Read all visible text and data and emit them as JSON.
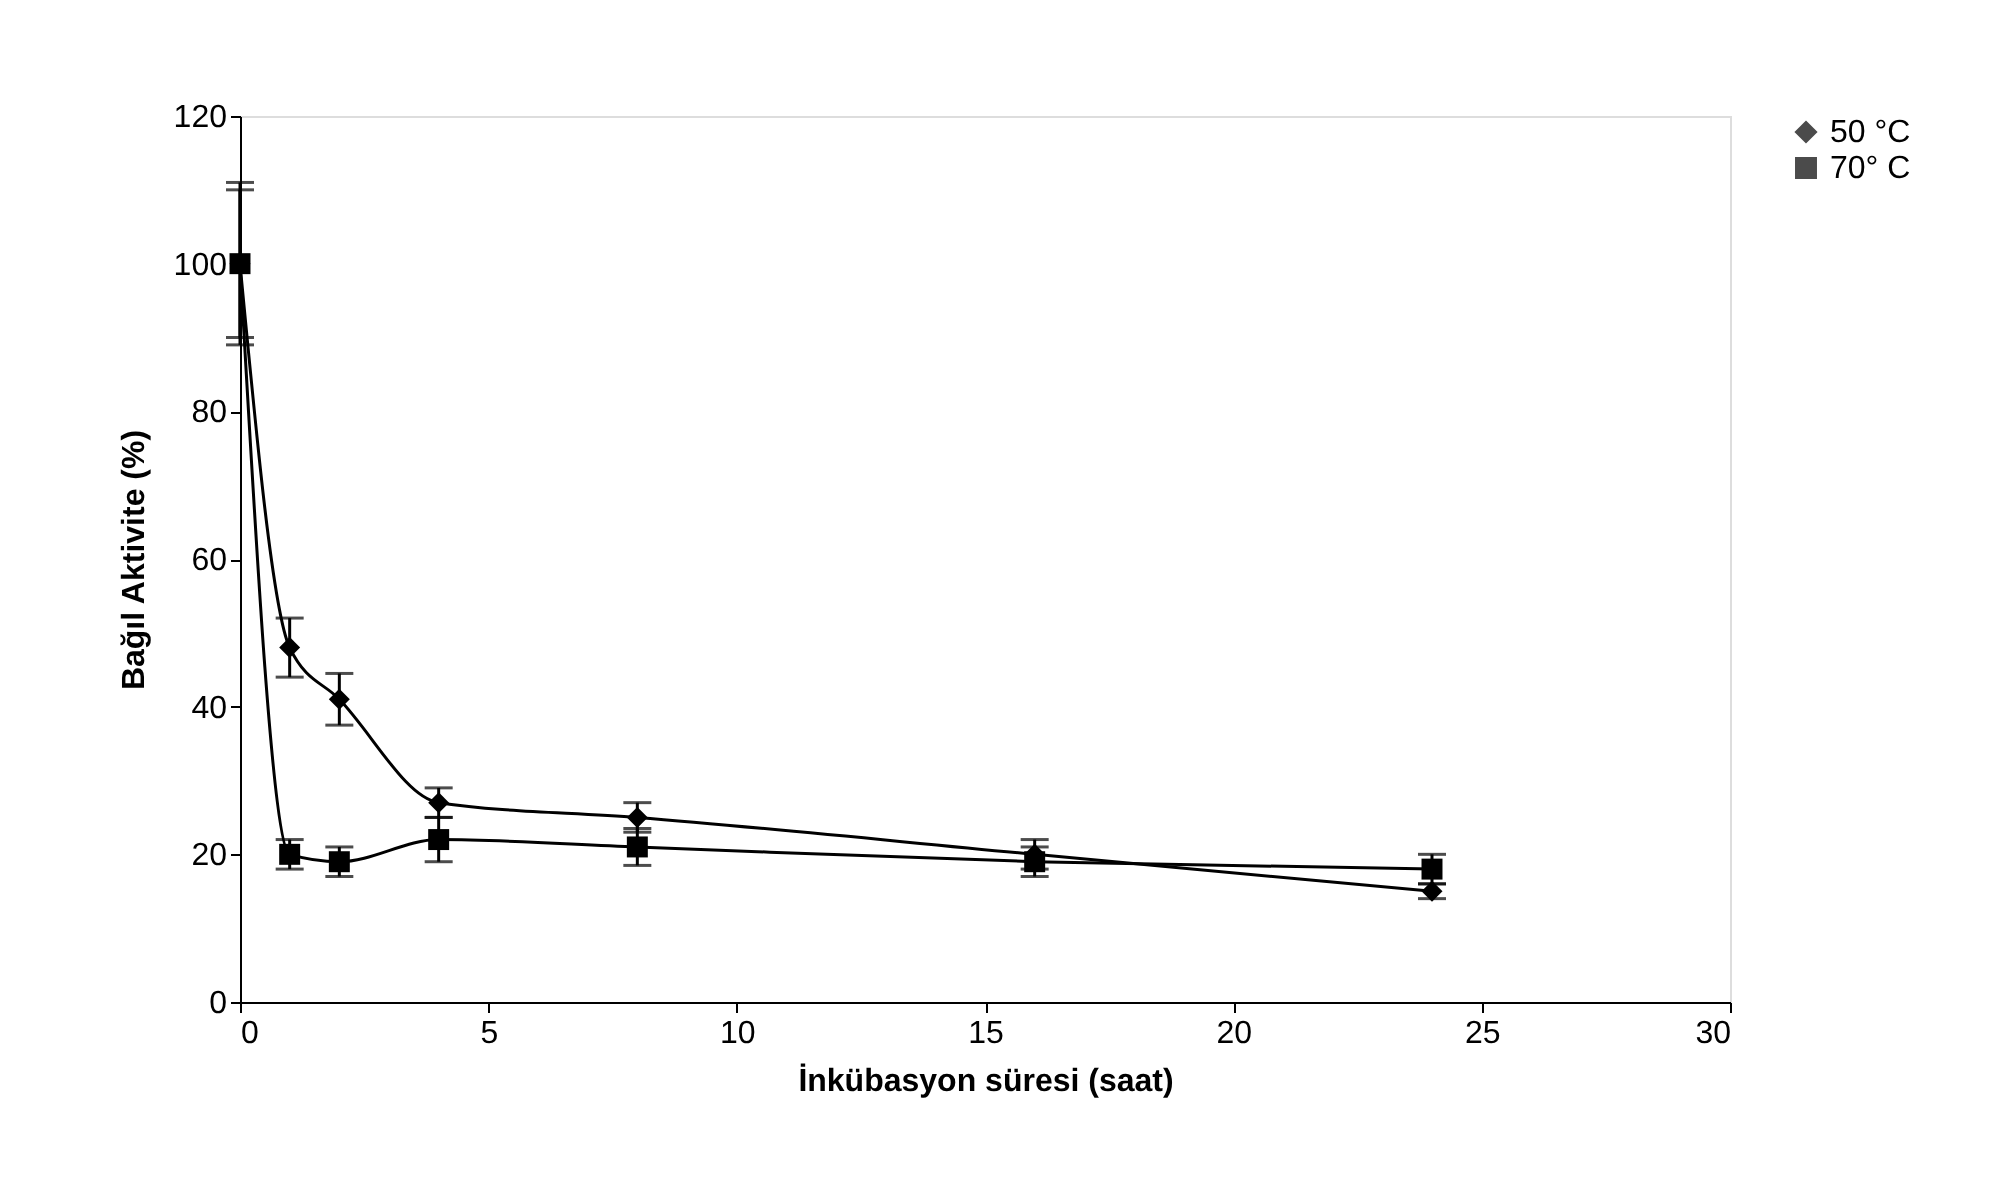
{
  "chart_data": {
    "type": "line",
    "xlabel": "İnkübasyon süresi (saat)",
    "ylabel": "Bağıl Aktivite (%)",
    "x": [
      0,
      1,
      2,
      4,
      8,
      16,
      24
    ],
    "series": [
      {
        "name": "50 °C",
        "color": "#000000",
        "marker": "diamond",
        "values": [
          100,
          48,
          41,
          27,
          25,
          20,
          15
        ],
        "errors": [
          10,
          4,
          3.5,
          2,
          2,
          2,
          1
        ]
      },
      {
        "name": "70° C",
        "color": "#000000",
        "marker": "square",
        "values": [
          100,
          20,
          19,
          22,
          21,
          19,
          18
        ],
        "errors": [
          11,
          2,
          2,
          3,
          2.5,
          2,
          2
        ]
      }
    ],
    "xlim": [
      0,
      30
    ],
    "xticks": [
      0,
      5,
      10,
      15,
      20,
      25,
      30
    ],
    "ylim": [
      0,
      120
    ],
    "yticks": [
      0,
      20,
      40,
      60,
      80,
      100,
      120
    ],
    "grid": false,
    "legend": "right",
    "line_style": "solid"
  }
}
